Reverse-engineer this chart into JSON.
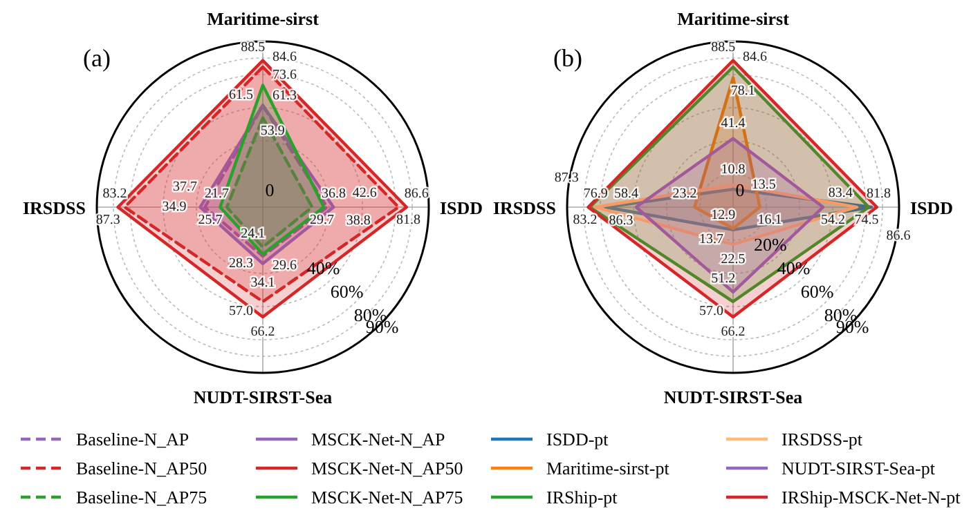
{
  "chart_data": [
    {
      "type": "radar",
      "title": "(a)",
      "categories": [
        "Maritime-sirst",
        "ISDD",
        "NUDT-SIRST-Sea",
        "IRSDSS"
      ],
      "ylim": [
        0,
        100
      ],
      "yticks": [
        0,
        {
          "value": 40,
          "label": "40%"
        },
        {
          "value": 60,
          "label": "60%"
        },
        {
          "value": 80,
          "label": "80%"
        },
        {
          "value": 90,
          "label": "90%"
        }
      ],
      "grid": true,
      "legend": "bottom",
      "series": [
        {
          "name": "Baseline-N_AP",
          "color": "#9467bd",
          "line_style": "dashed",
          "values": [
            61.3,
            38.8,
            29.6,
            34.9
          ],
          "value_labels": [
            "61.3",
            "38.8",
            "29.6",
            "34.9"
          ]
        },
        {
          "name": "Baseline-N_AP50",
          "color": "#d62728",
          "line_style": "dashed",
          "values": [
            84.6,
            81.8,
            57.0,
            83.2
          ],
          "value_labels": [
            "84.6",
            "81.8",
            "57.0",
            "83.2"
          ]
        },
        {
          "name": "Baseline-N_AP75",
          "color": "#2ca02c",
          "line_style": "dashed",
          "values": [
            53.9,
            29.7,
            24.1,
            21.7
          ],
          "value_labels": [
            "53.9",
            "29.7",
            "24.1",
            "21.7"
          ]
        },
        {
          "name": "MSCK-Net-N_AP",
          "color": "#9467bd",
          "line_style": "solid",
          "values": [
            61.5,
            42.6,
            34.1,
            37.7
          ],
          "value_labels": [
            "61.5",
            "42.6",
            "34.1",
            "37.7"
          ]
        },
        {
          "name": "MSCK-Net-N_AP50",
          "color": "#d62728",
          "line_style": "solid",
          "values": [
            88.5,
            86.6,
            66.2,
            87.3
          ],
          "value_labels": [
            "88.5",
            "86.6",
            "66.2",
            "87.3"
          ]
        },
        {
          "name": "MSCK-Net-N_AP75",
          "color": "#2ca02c",
          "line_style": "solid",
          "values": [
            73.6,
            36.8,
            28.3,
            25.7
          ],
          "value_labels": [
            "73.6",
            "36.8",
            "28.3",
            "25.7"
          ]
        }
      ]
    },
    {
      "type": "radar",
      "title": "(b)",
      "categories": [
        "Maritime-sirst",
        "ISDD",
        "NUDT-SIRST-Sea",
        "IRSDSS"
      ],
      "ylim": [
        0,
        100
      ],
      "yticks": [
        0,
        {
          "value": 20,
          "label": "20%"
        },
        {
          "value": 40,
          "label": "40%"
        },
        {
          "value": 60,
          "label": "60%"
        },
        {
          "value": 80,
          "label": "80%"
        },
        {
          "value": 90,
          "label": "90%"
        }
      ],
      "grid": true,
      "legend": "bottom",
      "series": [
        {
          "name": "ISDD-pt",
          "color": "#1f77b4",
          "line_style": "solid",
          "values": [
            10.8,
            83.4,
            13.7,
            76.9
          ],
          "value_labels": [
            "10.8",
            "83.4",
            "13.7",
            "76.9"
          ]
        },
        {
          "name": "Maritime-sirst-pt",
          "color": "#ff7f0e",
          "line_style": "solid",
          "values": [
            78.1,
            16.1,
            12.9,
            23.2
          ],
          "value_labels": [
            "78.1",
            "16.1",
            "12.9",
            "23.2"
          ]
        },
        {
          "name": "IRShip-pt",
          "color": "#2ca02c",
          "line_style": "solid",
          "values": [
            84.6,
            81.8,
            57.0,
            86.3
          ],
          "value_labels": [
            "84.6",
            "81.8",
            "57.0",
            "86.3"
          ]
        },
        {
          "name": "IRSDSS-pt",
          "color": "#ffbb78",
          "line_style": "solid",
          "values": [
            13.5,
            74.5,
            22.5,
            83.2
          ],
          "value_labels": [
            "13.5",
            "74.5",
            "22.5",
            "83.2"
          ]
        },
        {
          "name": "NUDT-SIRST-Sea-pt",
          "color": "#9467bd",
          "line_style": "solid",
          "values": [
            41.4,
            54.2,
            51.2,
            58.4
          ],
          "value_labels": [
            "41.4",
            "54.2",
            "51.2",
            "58.4"
          ]
        },
        {
          "name": "IRShip-MSCK-Net-N-pt",
          "color": "#d62728",
          "line_style": "solid",
          "values": [
            88.5,
            86.6,
            66.2,
            87.3
          ],
          "value_labels": [
            "88.5",
            "86.6",
            "66.2",
            "87.3"
          ]
        }
      ]
    }
  ]
}
